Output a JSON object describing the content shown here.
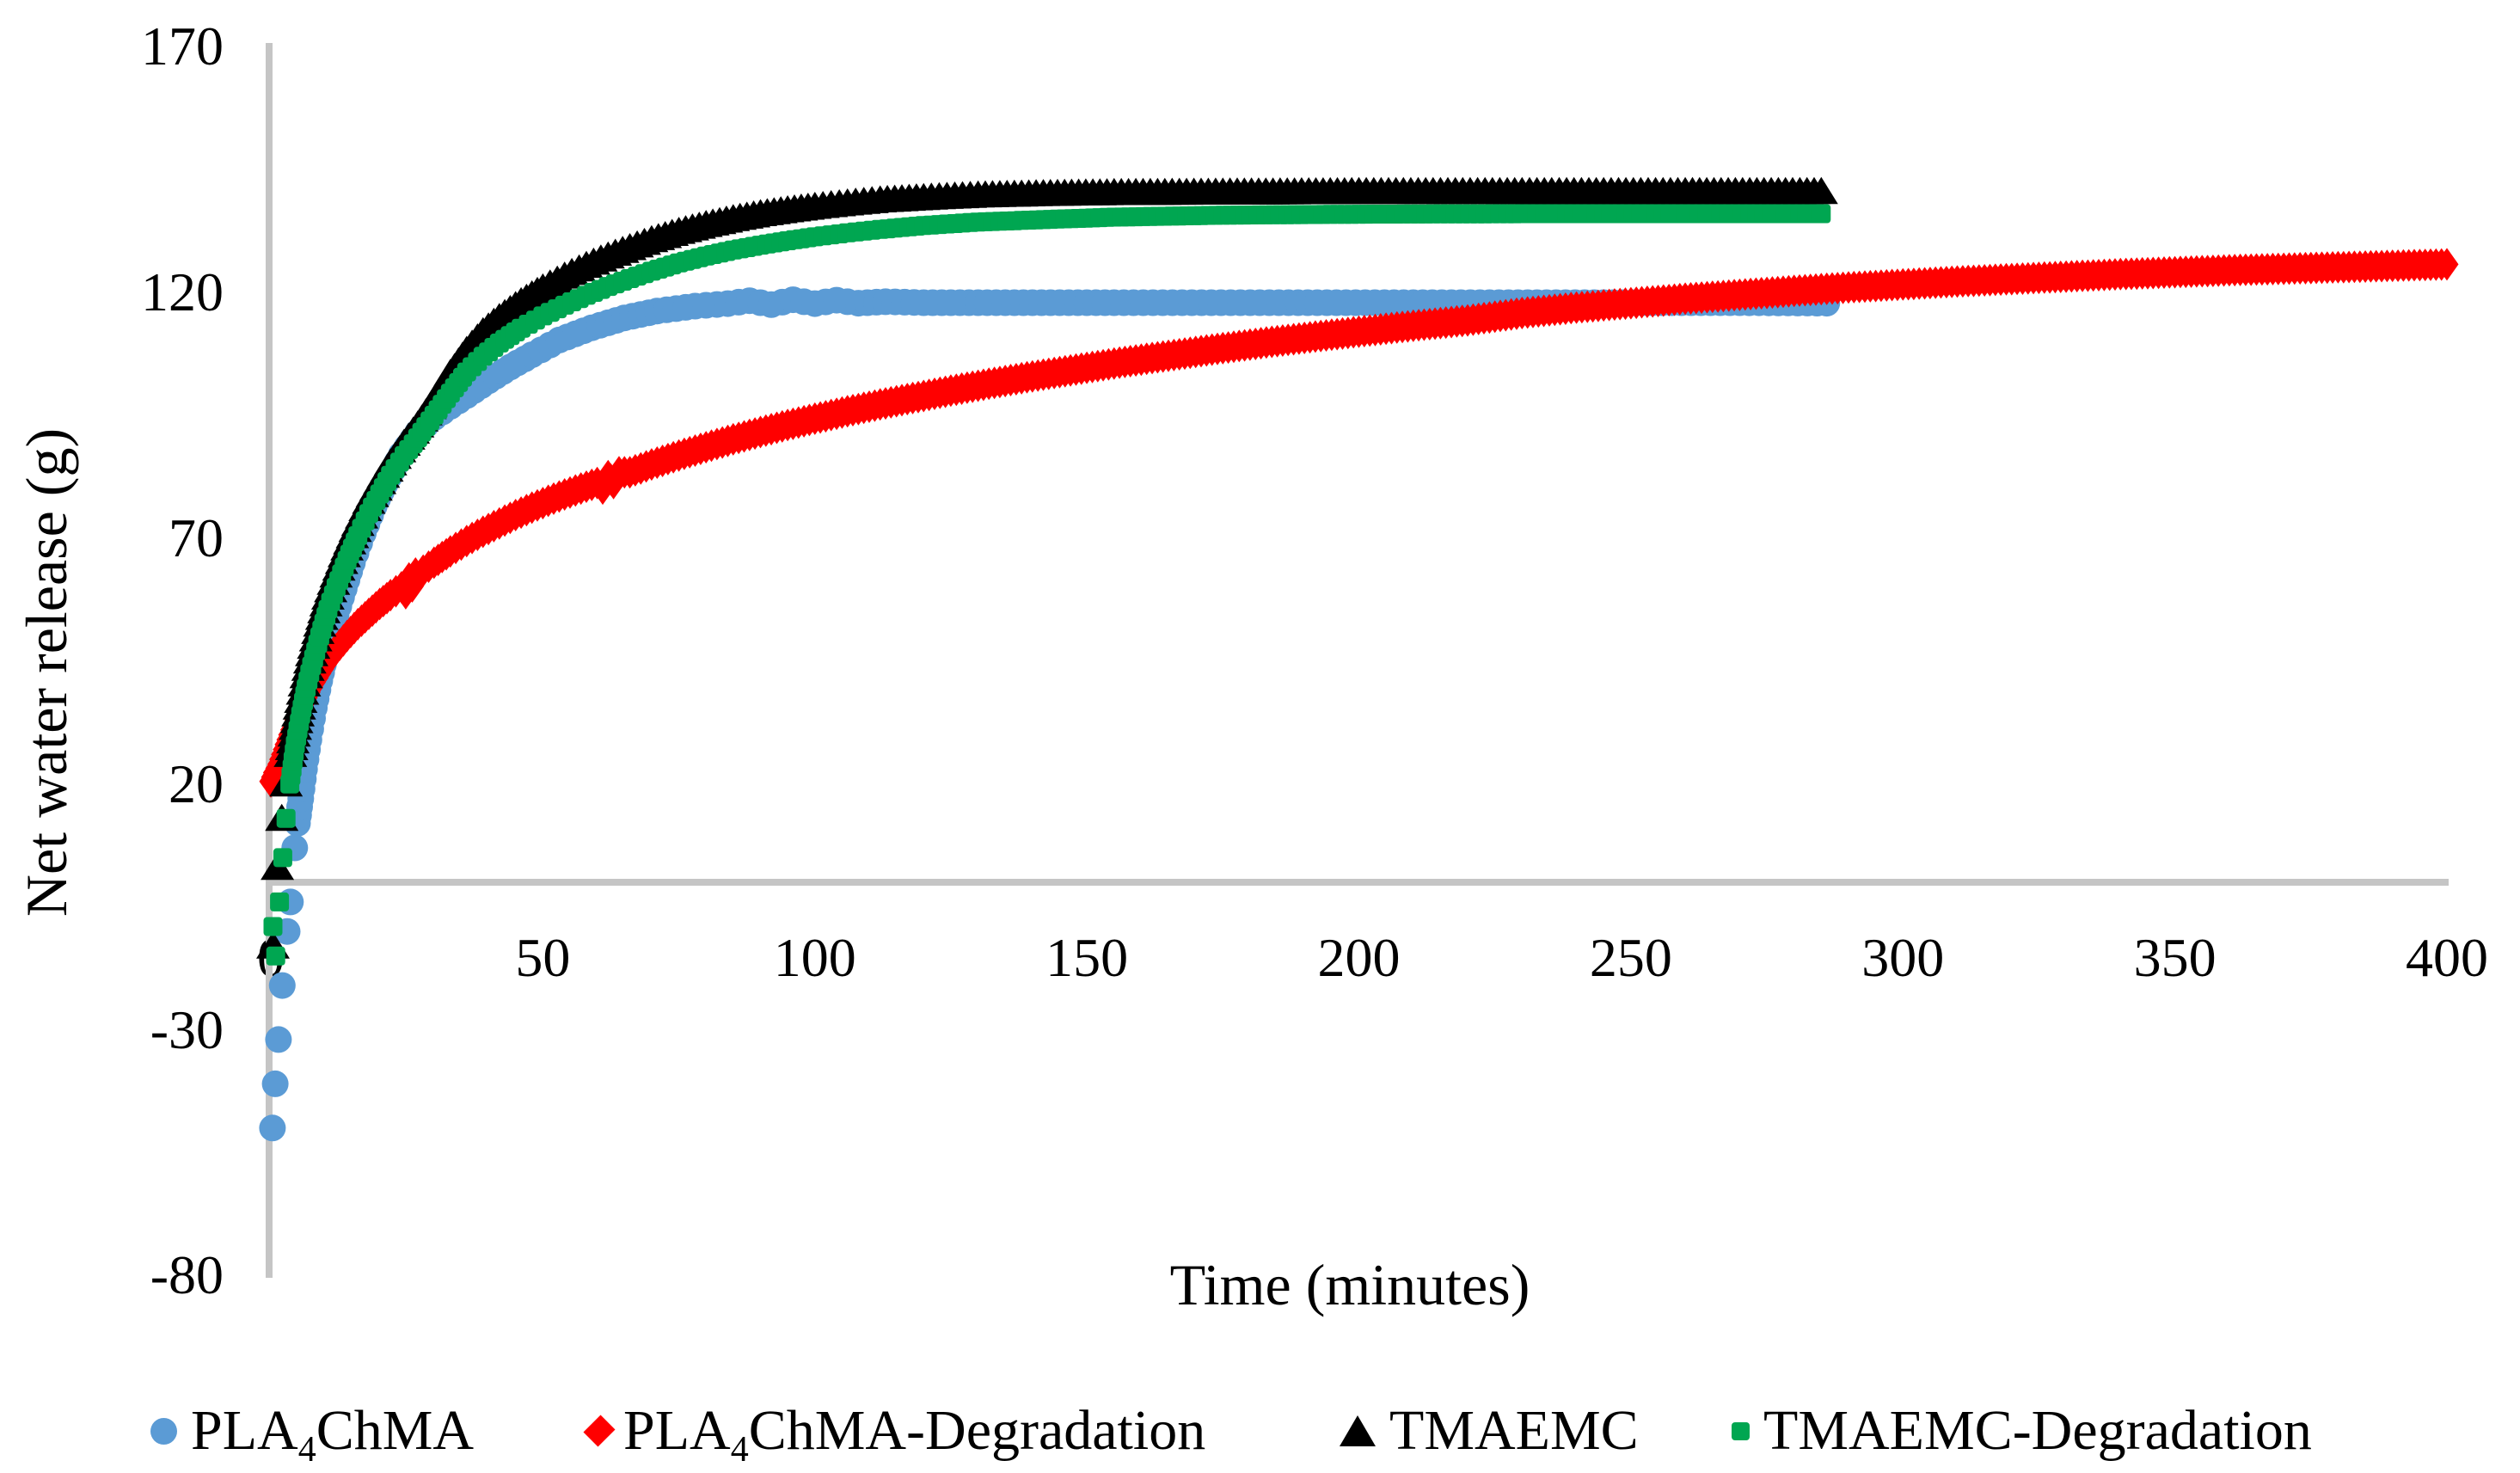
{
  "colors": {
    "blue": "#5B9BD5",
    "red": "#FF0000",
    "black": "#000000",
    "green": "#00A651",
    "axis_gray": "#C5C5C5",
    "background": "#FFFFFF"
  },
  "legend": {
    "items": [
      {
        "pre": "PLA",
        "sub": "4",
        "post": "ChMA",
        "marker": "circle",
        "color": "#5B9BD5"
      },
      {
        "pre": "PLA",
        "sub": "4",
        "post": "ChMA-Degradation",
        "marker": "diamond",
        "color": "#FF0000"
      },
      {
        "pre": "TMAEMC",
        "sub": "",
        "post": "",
        "marker": "triangle",
        "color": "#000000"
      },
      {
        "pre": "TMAEMC",
        "sub": "",
        "post": "-Degradation",
        "marker": "square",
        "color": "#00A651"
      }
    ]
  },
  "chart_data": {
    "type": "scatter",
    "title": "",
    "xlabel": "Time (minutes)",
    "ylabel": "Net water release (g)",
    "xlim": [
      0,
      400
    ],
    "ylim": [
      -80,
      170
    ],
    "x_ticks": [
      0,
      50,
      100,
      150,
      200,
      250,
      300,
      350,
      400
    ],
    "y_ticks": [
      170,
      120,
      70,
      20,
      -30,
      -80
    ],
    "grid": false,
    "legend_position": "bottom",
    "series": [
      {
        "name": "PLA4ChMA",
        "marker": "circle",
        "color": "#5B9BD5",
        "spacing": 11,
        "sparse_until": 5.2,
        "points": [
          [
            0.3,
            -50
          ],
          [
            0.8,
            -41
          ],
          [
            1.4,
            -32
          ],
          [
            2.1,
            -21
          ],
          [
            3,
            -10
          ],
          [
            3.6,
            -4
          ],
          [
            4.4,
            7
          ],
          [
            4.9,
            12
          ],
          [
            5.5,
            17
          ],
          [
            6.2,
            23
          ],
          [
            7,
            29
          ],
          [
            8,
            35.5
          ],
          [
            9,
            41
          ],
          [
            10,
            46
          ],
          [
            11.5,
            52.5
          ],
          [
            13,
            58
          ],
          [
            15,
            65
          ],
          [
            17,
            71
          ],
          [
            19,
            76.5
          ],
          [
            21,
            81
          ],
          [
            24,
            87
          ],
          [
            27,
            91.5
          ],
          [
            30,
            94.5
          ],
          [
            33,
            96.8
          ],
          [
            36,
            99
          ],
          [
            40,
            102
          ],
          [
            44,
            104.8
          ],
          [
            48,
            107.3
          ],
          [
            53,
            110.3
          ],
          [
            59,
            112.8
          ],
          [
            65,
            114.8
          ],
          [
            71,
            116.2
          ],
          [
            78,
            117.2
          ],
          [
            84,
            117.7
          ],
          [
            88,
            118.3
          ],
          [
            92,
            117.5
          ],
          [
            96,
            118.5
          ],
          [
            100,
            117.7
          ],
          [
            104,
            118.4
          ],
          [
            108,
            117.8
          ],
          [
            113,
            118.1
          ],
          [
            120,
            117.9
          ],
          [
            135,
            117.9
          ],
          [
            155,
            117.9
          ],
          [
            180,
            117.9
          ],
          [
            210,
            117.9
          ],
          [
            245,
            117.9
          ],
          [
            270,
            117.9
          ],
          [
            286,
            117.8
          ]
        ]
      },
      {
        "name": "PLA4ChMA-Degradation",
        "marker": "diamond",
        "color": "#FF0000",
        "spacing": 6.5,
        "sparse_until": 0,
        "points": [
          [
            0,
            20.5
          ],
          [
            0.7,
            22.3
          ],
          [
            1.5,
            24
          ],
          [
            2.5,
            27
          ],
          [
            3.5,
            30
          ],
          [
            5,
            34
          ],
          [
            6.5,
            37.6
          ],
          [
            8,
            40.7
          ],
          [
            10,
            44.3
          ],
          [
            12,
            47.4
          ],
          [
            14,
            50.1
          ],
          [
            16,
            52.5
          ],
          [
            18,
            54.6
          ],
          [
            20,
            56.6
          ],
          [
            22,
            58.4
          ],
          [
            24,
            60
          ],
          [
            24.8,
            58.8
          ],
          [
            25.4,
            61.8
          ],
          [
            26,
            60.2
          ],
          [
            26.6,
            62.8
          ],
          [
            28,
            63.4
          ],
          [
            30,
            65
          ],
          [
            33,
            67.3
          ],
          [
            36,
            69.4
          ],
          [
            39,
            71.3
          ],
          [
            42,
            73
          ],
          [
            45,
            74.7
          ],
          [
            48,
            76.2
          ],
          [
            51,
            77.6
          ],
          [
            54,
            78.9
          ],
          [
            57,
            80.1
          ],
          [
            60,
            81.2
          ],
          [
            61,
            80.1
          ],
          [
            62,
            82.6
          ],
          [
            63,
            81.2
          ],
          [
            64,
            83.4
          ],
          [
            66,
            83.4
          ],
          [
            70,
            85
          ],
          [
            75,
            86.8
          ],
          [
            80,
            88.5
          ],
          [
            85,
            90.1
          ],
          [
            90,
            91.6
          ],
          [
            95,
            93
          ],
          [
            100,
            94.3
          ],
          [
            106,
            95.8
          ],
          [
            112,
            97.2
          ],
          [
            118,
            98.5
          ],
          [
            125,
            100
          ],
          [
            132,
            101.4
          ],
          [
            140,
            102.9
          ],
          [
            148,
            104.3
          ],
          [
            156,
            105.7
          ],
          [
            165,
            107.1
          ],
          [
            174,
            108.5
          ],
          [
            183,
            109.8
          ],
          [
            192,
            111
          ],
          [
            200,
            112
          ],
          [
            210,
            113.2
          ],
          [
            220,
            114.3
          ],
          [
            230,
            115.8
          ],
          [
            240,
            116.9
          ],
          [
            250,
            117.8
          ],
          [
            260,
            118.7
          ],
          [
            270,
            119.5
          ],
          [
            280,
            120.3
          ],
          [
            290,
            121
          ],
          [
            300,
            121.6
          ],
          [
            310,
            122.2
          ],
          [
            320,
            122.7
          ],
          [
            330,
            123.2
          ],
          [
            340,
            123.7
          ],
          [
            350,
            124.1
          ],
          [
            360,
            124.5
          ],
          [
            370,
            124.8
          ],
          [
            380,
            125.1
          ],
          [
            390,
            125.4
          ],
          [
            400,
            125.7
          ]
        ]
      },
      {
        "name": "TMAEMC",
        "marker": "triangle",
        "color": "#000000",
        "spacing": 8.5,
        "sparse_until": 4,
        "points": [
          [
            0.4,
            -13
          ],
          [
            1.2,
            3
          ],
          [
            2,
            13
          ],
          [
            2.8,
            20
          ],
          [
            3.6,
            26
          ],
          [
            4.5,
            31.5
          ],
          [
            5.5,
            37
          ],
          [
            6.5,
            42
          ],
          [
            7.5,
            46.5
          ],
          [
            9,
            52.5
          ],
          [
            10.5,
            58
          ],
          [
            12,
            62.5
          ],
          [
            14,
            68
          ],
          [
            16,
            73
          ],
          [
            18,
            77.5
          ],
          [
            20,
            81.5
          ],
          [
            22,
            85.3
          ],
          [
            24.5,
            89.3
          ],
          [
            27,
            93
          ],
          [
            30,
            98
          ],
          [
            33,
            103.5
          ],
          [
            36,
            108.2
          ],
          [
            39,
            112
          ],
          [
            42,
            114.9
          ],
          [
            46,
            118.1
          ],
          [
            50,
            120.9
          ],
          [
            54,
            123.3
          ],
          [
            58,
            125.5
          ],
          [
            62,
            127.4
          ],
          [
            66,
            129.1
          ],
          [
            70,
            130.7
          ],
          [
            75,
            132.4
          ],
          [
            80,
            133.8
          ],
          [
            85,
            135
          ],
          [
            90,
            136
          ],
          [
            95,
            136.8
          ],
          [
            100,
            137.5
          ],
          [
            106,
            138.2
          ],
          [
            112,
            138.8
          ],
          [
            120,
            139.3
          ],
          [
            130,
            139.8
          ],
          [
            142,
            140.1
          ],
          [
            155,
            140.3
          ],
          [
            175,
            140.4
          ],
          [
            200,
            140.5
          ],
          [
            230,
            140.5
          ],
          [
            260,
            140.5
          ],
          [
            285,
            140.5
          ]
        ]
      },
      {
        "name": "TMAEMC-Degradation",
        "marker": "square",
        "color": "#00A651",
        "spacing": 8.5,
        "sparse_until": 4,
        "points": [
          [
            0.4,
            -9
          ],
          [
            0.9,
            -15
          ],
          [
            1.6,
            -4
          ],
          [
            2.2,
            5
          ],
          [
            2.8,
            13
          ],
          [
            3.5,
            20
          ],
          [
            4.5,
            28
          ],
          [
            5.5,
            34
          ],
          [
            6.5,
            39.5
          ],
          [
            7.5,
            44
          ],
          [
            9,
            50
          ],
          [
            10.5,
            55.5
          ],
          [
            12,
            60
          ],
          [
            14,
            65.5
          ],
          [
            16,
            70.5
          ],
          [
            18,
            75
          ],
          [
            20,
            79
          ],
          [
            22,
            82.8
          ],
          [
            24.5,
            86.8
          ],
          [
            27,
            90.4
          ],
          [
            30,
            95
          ],
          [
            33,
            99.5
          ],
          [
            36,
            103.8
          ],
          [
            39,
            107
          ],
          [
            42,
            109.7
          ],
          [
            46,
            112.7
          ],
          [
            50,
            115.2
          ],
          [
            54,
            117.4
          ],
          [
            58,
            119.4
          ],
          [
            62,
            121.2
          ],
          [
            66,
            122.8
          ],
          [
            70,
            124.3
          ],
          [
            75,
            126
          ],
          [
            80,
            127.4
          ],
          [
            85,
            128.6
          ],
          [
            90,
            129.6
          ],
          [
            95,
            130.5
          ],
          [
            100,
            131.3
          ],
          [
            106,
            132.1
          ],
          [
            112,
            132.8
          ],
          [
            120,
            133.6
          ],
          [
            130,
            134.3
          ],
          [
            142,
            134.8
          ],
          [
            155,
            135.3
          ],
          [
            175,
            135.7
          ],
          [
            200,
            135.9
          ],
          [
            230,
            136
          ],
          [
            260,
            136
          ],
          [
            285,
            136
          ]
        ]
      }
    ]
  }
}
